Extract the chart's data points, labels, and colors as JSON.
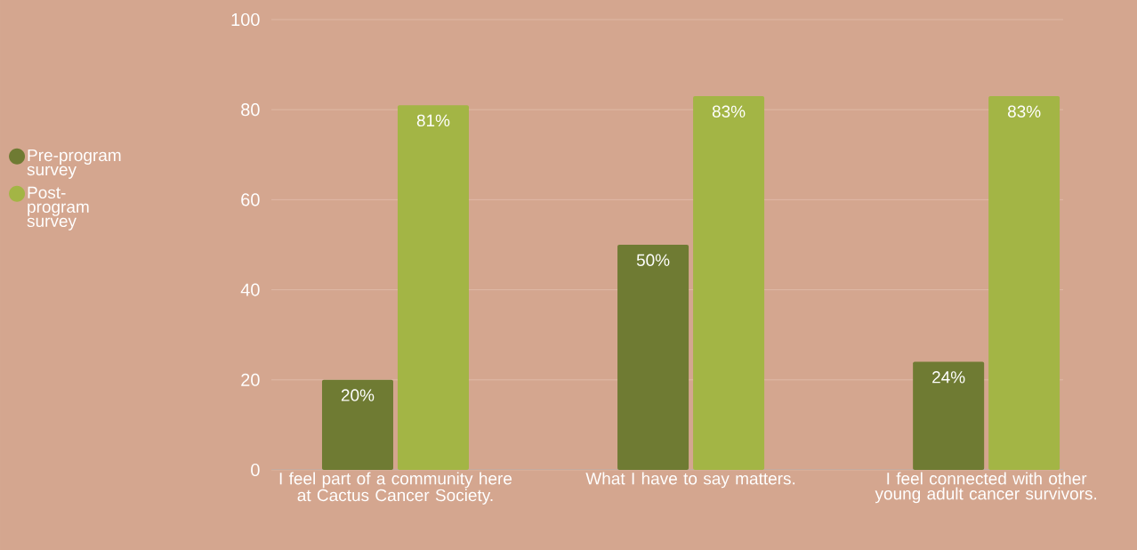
{
  "chart_data": {
    "type": "bar",
    "categories": [
      "I feel part of a community here at Cactus Cancer Society.",
      "What I have to say matters.",
      "I feel connected with other young adult cancer survivors."
    ],
    "series": [
      {
        "name": "Pre-program survey",
        "color": "#6f7b33",
        "values": [
          20,
          50,
          24
        ],
        "value_labels": [
          "20%",
          "50%",
          "24%"
        ]
      },
      {
        "name": "Post-program survey",
        "color": "#a3b545",
        "values": [
          81,
          83,
          83
        ],
        "value_labels": [
          "81%",
          "83%",
          "83%"
        ]
      }
    ],
    "ylim": [
      0,
      100
    ],
    "yticks": [
      0,
      20,
      40,
      60,
      80,
      100
    ],
    "grid": "y",
    "legend": "left"
  }
}
